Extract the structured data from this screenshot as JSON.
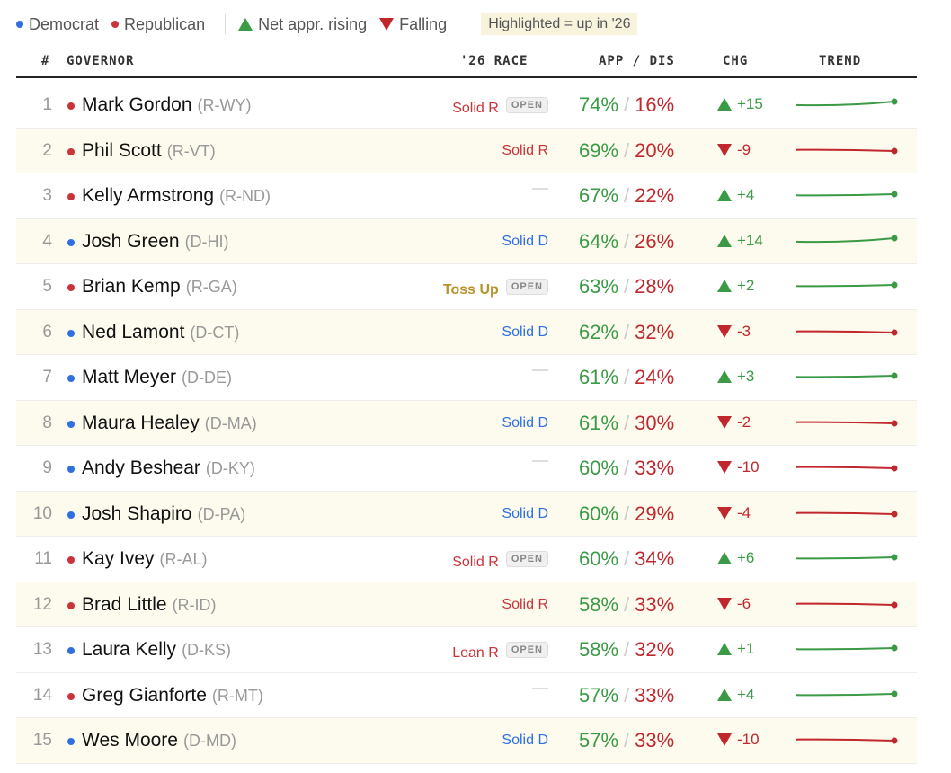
{
  "colors": {
    "dem": "#2f6fe0",
    "rep": "#c9343a",
    "up": "#3a9a45",
    "down": "#c0282d",
    "toss": "#b8922c",
    "highlight": "#fdfbee"
  },
  "legend": {
    "democrat": "Democrat",
    "republican": "Republican",
    "rising": "Net appr. rising",
    "falling": "Falling",
    "highlight_note": "Highlighted = up in '26"
  },
  "header": {
    "rank": "#",
    "governor": "GOVERNOR",
    "race": "'26 RACE",
    "appdis": "APP / DIS",
    "chg": "CHG",
    "trend": "TREND"
  },
  "open_label": "OPEN",
  "slash": "/",
  "rows": [
    {
      "rank": "1",
      "party": "R",
      "name": "Mark Gordon",
      "state": "(R-WY)",
      "race": "Solid R",
      "open": true,
      "app": "74%",
      "dis": "16%",
      "chg": "+15",
      "dir": "up",
      "highlighted": false
    },
    {
      "rank": "2",
      "party": "R",
      "name": "Phil Scott",
      "state": "(R-VT)",
      "race": "Solid R",
      "open": false,
      "app": "69%",
      "dis": "20%",
      "chg": "-9",
      "dir": "down",
      "highlighted": true
    },
    {
      "rank": "3",
      "party": "R",
      "name": "Kelly Armstrong",
      "state": "(R-ND)",
      "race": "",
      "open": false,
      "app": "67%",
      "dis": "22%",
      "chg": "+4",
      "dir": "up",
      "highlighted": false
    },
    {
      "rank": "4",
      "party": "D",
      "name": "Josh Green",
      "state": "(D-HI)",
      "race": "Solid D",
      "open": false,
      "app": "64%",
      "dis": "26%",
      "chg": "+14",
      "dir": "up",
      "highlighted": true
    },
    {
      "rank": "5",
      "party": "R",
      "name": "Brian Kemp",
      "state": "(R-GA)",
      "race": "Toss Up",
      "open": true,
      "app": "63%",
      "dis": "28%",
      "chg": "+2",
      "dir": "up",
      "highlighted": false
    },
    {
      "rank": "6",
      "party": "D",
      "name": "Ned Lamont",
      "state": "(D-CT)",
      "race": "Solid D",
      "open": false,
      "app": "62%",
      "dis": "32%",
      "chg": "-3",
      "dir": "down",
      "highlighted": true
    },
    {
      "rank": "7",
      "party": "D",
      "name": "Matt Meyer",
      "state": "(D-DE)",
      "race": "",
      "open": false,
      "app": "61%",
      "dis": "24%",
      "chg": "+3",
      "dir": "up",
      "highlighted": false
    },
    {
      "rank": "8",
      "party": "D",
      "name": "Maura Healey",
      "state": "(D-MA)",
      "race": "Solid D",
      "open": false,
      "app": "61%",
      "dis": "30%",
      "chg": "-2",
      "dir": "down",
      "highlighted": true
    },
    {
      "rank": "9",
      "party": "D",
      "name": "Andy Beshear",
      "state": "(D-KY)",
      "race": "",
      "open": false,
      "app": "60%",
      "dis": "33%",
      "chg": "-10",
      "dir": "down",
      "highlighted": false
    },
    {
      "rank": "10",
      "party": "D",
      "name": "Josh Shapiro",
      "state": "(D-PA)",
      "race": "Solid D",
      "open": false,
      "app": "60%",
      "dis": "29%",
      "chg": "-4",
      "dir": "down",
      "highlighted": true
    },
    {
      "rank": "11",
      "party": "R",
      "name": "Kay Ivey",
      "state": "(R-AL)",
      "race": "Solid R",
      "open": true,
      "app": "60%",
      "dis": "34%",
      "chg": "+6",
      "dir": "up",
      "highlighted": false
    },
    {
      "rank": "12",
      "party": "R",
      "name": "Brad Little",
      "state": "(R-ID)",
      "race": "Solid R",
      "open": false,
      "app": "58%",
      "dis": "33%",
      "chg": "-6",
      "dir": "down",
      "highlighted": true
    },
    {
      "rank": "13",
      "party": "D",
      "name": "Laura Kelly",
      "state": "(D-KS)",
      "race": "Lean R",
      "open": true,
      "app": "58%",
      "dis": "32%",
      "chg": "+1",
      "dir": "up",
      "highlighted": false
    },
    {
      "rank": "14",
      "party": "R",
      "name": "Greg Gianforte",
      "state": "(R-MT)",
      "race": "",
      "open": false,
      "app": "57%",
      "dis": "33%",
      "chg": "+4",
      "dir": "up",
      "highlighted": false
    },
    {
      "rank": "15",
      "party": "D",
      "name": "Wes Moore",
      "state": "(D-MD)",
      "race": "Solid D",
      "open": false,
      "app": "57%",
      "dis": "33%",
      "chg": "-10",
      "dir": "down",
      "highlighted": true
    }
  ]
}
